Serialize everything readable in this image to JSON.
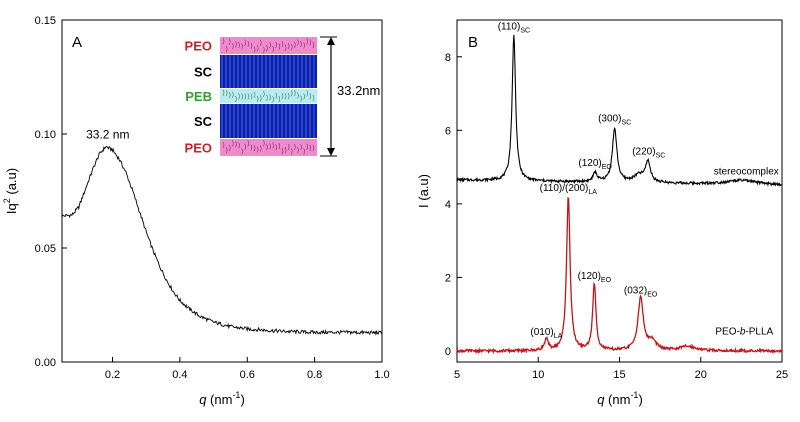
{
  "chart_data": [
    {
      "type": "line",
      "panel_label": "A",
      "xlabel_italic": "q",
      "xlabel_rest": " (nm",
      "xlabel_sup": "-1",
      "xlabel_close": ")",
      "ylabel_main": "Iq",
      "ylabel_sup": "2",
      "ylabel_rest": " (a.u)",
      "xlim": [
        0.05,
        1.0
      ],
      "ylim": [
        0.0,
        0.15
      ],
      "xticks": [
        0.2,
        0.4,
        0.6,
        0.8,
        1.0
      ],
      "xtick_labels": [
        "0.2",
        "0.4",
        "0.6",
        "0.8",
        "1.0"
      ],
      "yticks": [
        0.0,
        0.05,
        0.1,
        0.15
      ],
      "ytick_labels": [
        "0.00",
        "0.05",
        "0.10",
        "0.15"
      ],
      "series": [
        {
          "color": "#000000",
          "points": [
            [
              0.05,
              0.064
            ],
            [
              0.08,
              0.0645
            ],
            [
              0.1,
              0.068
            ],
            [
              0.12,
              0.076
            ],
            [
              0.14,
              0.084
            ],
            [
              0.16,
              0.091
            ],
            [
              0.18,
              0.0945
            ],
            [
              0.2,
              0.093
            ],
            [
              0.22,
              0.089
            ],
            [
              0.24,
              0.083
            ],
            [
              0.26,
              0.075
            ],
            [
              0.28,
              0.066
            ],
            [
              0.3,
              0.057
            ],
            [
              0.32,
              0.049
            ],
            [
              0.34,
              0.042
            ],
            [
              0.36,
              0.036
            ],
            [
              0.38,
              0.031
            ],
            [
              0.4,
              0.027
            ],
            [
              0.43,
              0.023
            ],
            [
              0.46,
              0.02
            ],
            [
              0.5,
              0.0175
            ],
            [
              0.55,
              0.0155
            ],
            [
              0.6,
              0.0145
            ],
            [
              0.7,
              0.0135
            ],
            [
              0.8,
              0.013
            ],
            [
              0.9,
              0.013
            ],
            [
              1.0,
              0.0128
            ]
          ]
        }
      ],
      "annotations": [
        {
          "text": "33.2 nm",
          "x": 0.18,
          "y": 0.0945
        }
      ],
      "inset": {
        "layers": [
          "PEO",
          "SC",
          "PEB",
          "SC",
          "PEO"
        ],
        "dimension_label": "33.2nm",
        "colors": {
          "peo": "#c0272d",
          "peb": "#3a9a3a",
          "sc_fill": "#0a1ea8",
          "sc_line": "#5a7aff",
          "peo_fill": "#f08acb",
          "peb_fill": "#b8ecf4"
        }
      }
    },
    {
      "type": "line",
      "panel_label": "B",
      "xlabel_italic": "q",
      "xlabel_rest": " (nm",
      "xlabel_sup": "-1",
      "xlabel_close": ")",
      "ylabel_main": "I (a.u)",
      "xlim": [
        5,
        25
      ],
      "ylim": [
        -0.3,
        9.0
      ],
      "xticks": [
        5,
        10,
        15,
        20,
        25
      ],
      "xtick_labels": [
        "5",
        "10",
        "15",
        "20",
        "25"
      ],
      "yticks": [
        0,
        2,
        4,
        6,
        8
      ],
      "ytick_labels": [
        "0",
        "2",
        "4",
        "6",
        "8"
      ],
      "series": [
        {
          "name": "stereocomplex",
          "color": "#000000",
          "baseline": 4.65,
          "peaks": [
            [
              8.5,
              3.95,
              0.13
            ],
            [
              13.5,
              0.25,
              0.15
            ],
            [
              14.7,
              1.45,
              0.17
            ],
            [
              16.2,
              0.2,
              0.4
            ],
            [
              16.75,
              0.55,
              0.18
            ],
            [
              22.5,
              0.12,
              1.2
            ]
          ]
        },
        {
          "name": "PEO-b-PLLA",
          "color": "#c0151b",
          "baseline": 0.0,
          "peaks": [
            [
              10.5,
              0.3,
              0.14
            ],
            [
              11.85,
              4.22,
              0.13
            ],
            [
              13.45,
              1.82,
              0.12
            ],
            [
              16.3,
              1.42,
              0.2
            ],
            [
              17.0,
              0.25,
              0.3
            ],
            [
              19.2,
              0.12,
              0.6
            ]
          ]
        }
      ],
      "peak_labels": [
        {
          "text": "(110)",
          "sub": "SC",
          "x": 8.5,
          "y": 8.6
        },
        {
          "text": "(120)",
          "sub": "EO",
          "x": 13.5,
          "y": 4.9
        },
        {
          "text": "(300)",
          "sub": "SC",
          "x": 14.7,
          "y": 6.1
        },
        {
          "text": "(220)",
          "sub": "SC",
          "x": 16.8,
          "y": 5.2
        },
        {
          "text": "(110)/(200)",
          "sub": "LA",
          "x": 11.85,
          "y": 4.22
        },
        {
          "text": "(120)",
          "sub": "EO",
          "x": 13.45,
          "y": 1.82
        },
        {
          "text": "(032)",
          "sub": "EO",
          "x": 16.3,
          "y": 1.42
        },
        {
          "text": "(010)",
          "sub": "LA",
          "x": 10.5,
          "y": 0.3
        }
      ],
      "series_labels": [
        {
          "text": "stereocomplex",
          "x": 20.8,
          "y": 4.8
        },
        {
          "text_pre": "PEO-",
          "text_italic": "b",
          "text_post": "-PLLA",
          "x": 20.9,
          "y": 0.45
        }
      ]
    }
  ]
}
